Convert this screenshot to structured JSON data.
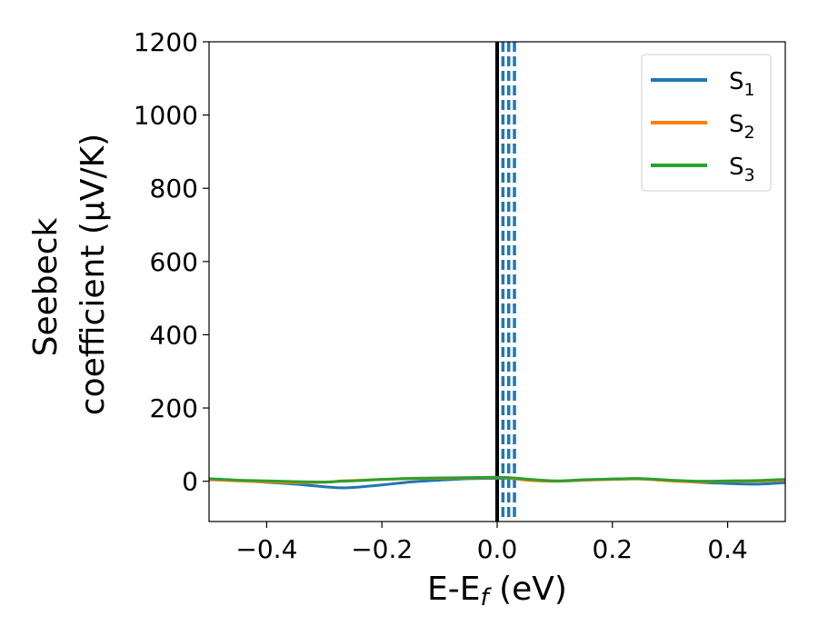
{
  "chart_data": {
    "type": "line",
    "xlabel": {
      "main": "E-E",
      "sub": "f",
      "unit": " (eV)"
    },
    "ylabel": {
      "line1": "Seebeck",
      "line2": "coefficient  (μV/K)"
    },
    "xlim": [
      -0.5,
      0.5
    ],
    "ylim": [
      -110,
      1200
    ],
    "xticks": [
      -0.4,
      -0.2,
      0.0,
      0.2,
      0.4
    ],
    "xtick_labels": [
      "−0.4",
      "−0.2",
      "0.0",
      "0.2",
      "0.4"
    ],
    "yticks": [
      0,
      200,
      400,
      600,
      800,
      1000,
      1200
    ],
    "ytick_labels": [
      "0",
      "200",
      "400",
      "600",
      "800",
      "1000",
      "1200"
    ],
    "grid": false,
    "legend_position": "top-right",
    "x": [
      -0.5,
      -0.45,
      -0.4,
      -0.35,
      -0.3,
      -0.27,
      -0.25,
      -0.2,
      -0.15,
      -0.1,
      -0.05,
      0.0,
      0.02,
      0.05,
      0.1,
      0.15,
      0.2,
      0.25,
      0.3,
      0.35,
      0.4,
      0.45,
      0.5
    ],
    "series": [
      {
        "name": "S",
        "sub": "1",
        "color": "#1f77b4",
        "values": [
          5,
          2,
          -3,
          -8,
          -15,
          -18,
          -17,
          -10,
          -2,
          3,
          7,
          8,
          8,
          4,
          0,
          3,
          6,
          7,
          2,
          -3,
          -6,
          -8,
          -4
        ]
      },
      {
        "name": "S",
        "sub": "2",
        "color": "#ff7f0e",
        "values": [
          4,
          1,
          -2,
          -4,
          -3,
          1,
          2,
          5,
          7,
          8,
          9,
          10,
          9,
          3,
          0,
          3,
          5,
          6,
          1,
          -2,
          0,
          0,
          3
        ]
      },
      {
        "name": "S",
        "sub": "3",
        "color": "#2ca02c",
        "values": [
          7,
          3,
          1,
          -1,
          -2,
          0,
          1,
          5,
          8,
          9,
          10,
          11,
          10,
          6,
          1,
          4,
          6,
          7,
          3,
          0,
          1,
          2,
          5
        ]
      }
    ],
    "vlines": [
      {
        "x": 0.0,
        "style": "solid",
        "color": "#000000"
      },
      {
        "x": 0.01,
        "style": "dashed",
        "color": "#1f77b4"
      },
      {
        "x": 0.02,
        "style": "dashed",
        "color": "#1f77b4"
      },
      {
        "x": 0.03,
        "style": "dashed",
        "color": "#1f77b4"
      }
    ]
  }
}
